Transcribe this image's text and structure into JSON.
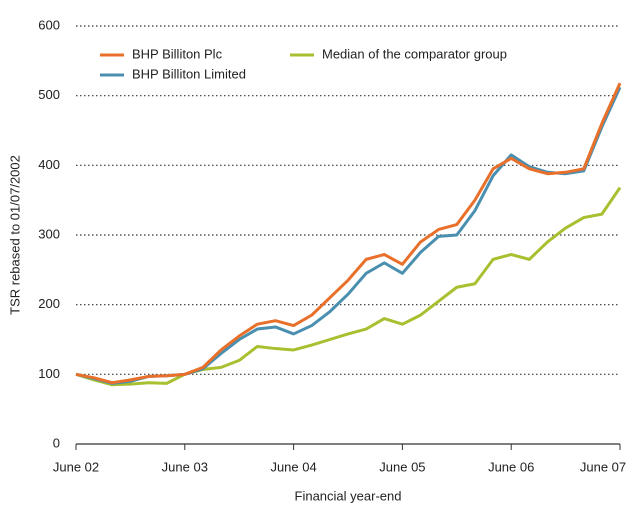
{
  "chart_data": {
    "type": "line",
    "y_label": "TSR rebased to 01/07/2002",
    "x_label": "Financial year-end",
    "categories": [
      "June 02",
      null,
      null,
      null,
      null,
      null,
      "June 03",
      null,
      null,
      null,
      null,
      null,
      "June 04",
      null,
      null,
      null,
      null,
      null,
      "June 05",
      null,
      null,
      null,
      null,
      null,
      "June 06",
      null,
      null,
      null,
      null,
      null,
      "June 07"
    ],
    "series": [
      {
        "name": "BHP Billiton Plc",
        "color": "#e8702a",
        "values": [
          100,
          95,
          88,
          92,
          97,
          98,
          100,
          110,
          135,
          155,
          172,
          177,
          170,
          185,
          210,
          235,
          265,
          272,
          258,
          290,
          308,
          315,
          350,
          395,
          410,
          395,
          388,
          390,
          395,
          460,
          518
        ]
      },
      {
        "name": "BHP Billiton Limited",
        "color": "#4a8fb0",
        "values": [
          100,
          94,
          87,
          90,
          97,
          98,
          100,
          108,
          130,
          150,
          165,
          168,
          158,
          170,
          190,
          215,
          245,
          260,
          245,
          275,
          298,
          300,
          335,
          385,
          415,
          398,
          390,
          388,
          392,
          455,
          512
        ]
      },
      {
        "name": "Median of the comparator group",
        "color": "#a8c030",
        "values": [
          100,
          92,
          85,
          86,
          88,
          87,
          100,
          107,
          110,
          120,
          140,
          137,
          135,
          142,
          150,
          158,
          165,
          180,
          172,
          185,
          205,
          225,
          230,
          265,
          272,
          265,
          290,
          310,
          325,
          330,
          368
        ]
      }
    ],
    "ylim": [
      0,
      600
    ],
    "yticks": [
      0,
      100,
      200,
      300,
      400,
      500,
      600
    ],
    "grid": true
  }
}
